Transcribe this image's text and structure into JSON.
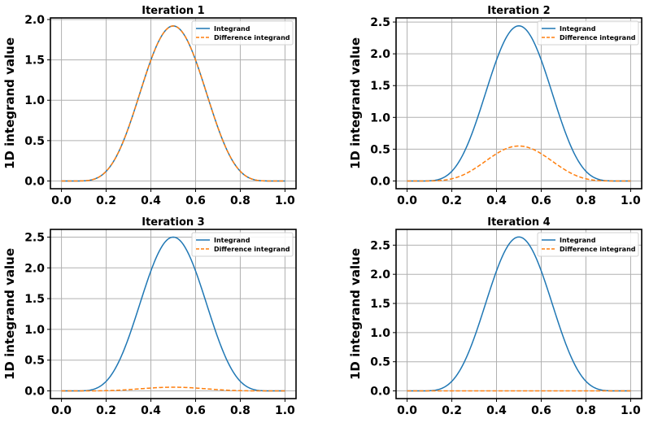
{
  "chart_data": [
    {
      "type": "line",
      "title": "Iteration 1",
      "xlabel": "",
      "ylabel": "1D integrand value",
      "xlim": [
        0,
        1
      ],
      "ylim": [
        -0.096,
        2.02
      ],
      "xticks": [
        "0.0",
        "0.2",
        "0.4",
        "0.6",
        "0.8",
        "1.0"
      ],
      "yticks": [
        "0.0",
        "0.5",
        "1.0",
        "1.5",
        "2.0"
      ],
      "legend_position": "top-right",
      "grid": true,
      "series": [
        {
          "name": "Integrand",
          "peak": 1.92,
          "color": "#1f77b4",
          "style": "solid"
        },
        {
          "name": "Difference integrand",
          "peak": 1.92,
          "color": "#ff7f0e",
          "style": "dashed"
        }
      ]
    },
    {
      "type": "line",
      "title": "Iteration 2",
      "xlabel": "",
      "ylabel": "1D integrand value",
      "xlim": [
        0,
        1
      ],
      "ylim": [
        -0.122,
        2.565
      ],
      "xticks": [
        "0.0",
        "0.2",
        "0.4",
        "0.6",
        "0.8",
        "1.0"
      ],
      "yticks": [
        "0.0",
        "0.5",
        "1.0",
        "1.5",
        "2.0",
        "2.5"
      ],
      "legend_position": "top-right",
      "grid": true,
      "series": [
        {
          "name": "Integrand",
          "peak": 2.44,
          "color": "#1f77b4",
          "style": "solid"
        },
        {
          "name": "Difference integrand",
          "peak": 0.55,
          "color": "#ff7f0e",
          "style": "dashed"
        }
      ]
    },
    {
      "type": "line",
      "title": "Iteration 3",
      "xlabel": "",
      "ylabel": "1D integrand value",
      "xlim": [
        0,
        1
      ],
      "ylim": [
        -0.125,
        2.625
      ],
      "xticks": [
        "0.0",
        "0.2",
        "0.4",
        "0.6",
        "0.8",
        "1.0"
      ],
      "yticks": [
        "0.0",
        "0.5",
        "1.0",
        "1.5",
        "2.0",
        "2.5"
      ],
      "legend_position": "top-right",
      "grid": true,
      "series": [
        {
          "name": "Integrand",
          "peak": 2.5,
          "color": "#1f77b4",
          "style": "solid"
        },
        {
          "name": "Difference integrand",
          "peak": 0.06,
          "color": "#ff7f0e",
          "style": "dashed"
        }
      ]
    },
    {
      "type": "line",
      "title": "Iteration 4",
      "xlabel": "",
      "ylabel": "1D integrand value",
      "xlim": [
        0,
        1
      ],
      "ylim": [
        -0.132,
        2.77
      ],
      "xticks": [
        "0.0",
        "0.2",
        "0.4",
        "0.6",
        "0.8",
        "1.0"
      ],
      "yticks": [
        "0.0",
        "0.5",
        "1.0",
        "1.5",
        "2.0",
        "2.5"
      ],
      "legend_position": "top-right",
      "grid": true,
      "series": [
        {
          "name": "Integrand",
          "peak": 2.64,
          "color": "#1f77b4",
          "style": "solid"
        },
        {
          "name": "Difference integrand",
          "peak": 0.0,
          "color": "#ff7f0e",
          "style": "dashed"
        }
      ]
    }
  ]
}
